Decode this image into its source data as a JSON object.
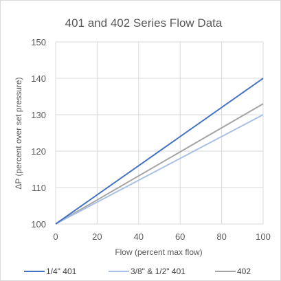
{
  "chart_data": {
    "type": "line",
    "title": "401 and 402 Series Flow Data",
    "xlabel": "Flow (percent max flow)",
    "ylabel": "ΔP (percent over set pressure)",
    "xlim": [
      0,
      100
    ],
    "ylim": [
      100,
      150
    ],
    "x_ticks": [
      0,
      20,
      40,
      60,
      80,
      100
    ],
    "y_ticks": [
      100,
      110,
      120,
      130,
      140,
      150
    ],
    "grid": true,
    "legend_position": "bottom",
    "series": [
      {
        "name": "1/4\" 401",
        "color": "#4472c4",
        "x": [
          0,
          100
        ],
        "y": [
          100,
          140
        ]
      },
      {
        "name": "3/8\" & 1/2\" 401",
        "color": "#a9c0e5",
        "x": [
          0,
          100
        ],
        "y": [
          100,
          130
        ]
      },
      {
        "name": "402",
        "color": "#a5a5a5",
        "x": [
          0,
          100
        ],
        "y": [
          100,
          133
        ]
      }
    ]
  }
}
